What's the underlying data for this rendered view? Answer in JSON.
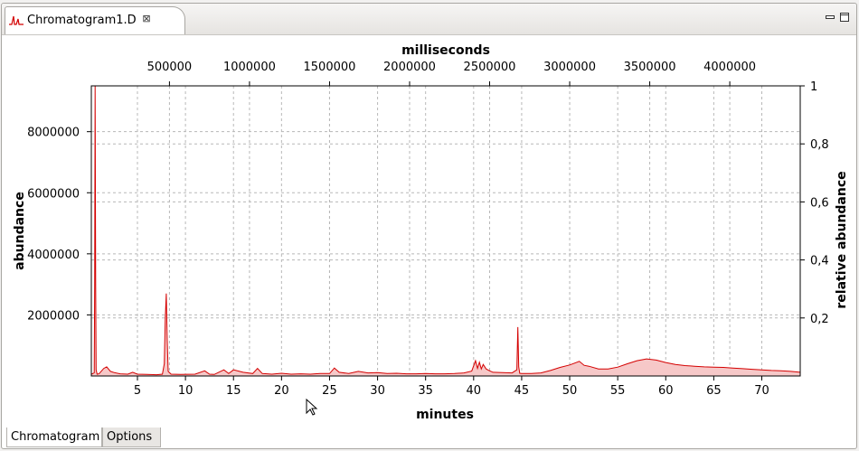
{
  "window": {
    "tab_title": "Chromatogram1.D",
    "tab_icon": "chromatogram-icon",
    "close_icon": "close-icon"
  },
  "bottom_tabs": [
    {
      "label": "Chromatogram"
    },
    {
      "label": "Options"
    }
  ],
  "colors": {
    "trace": "#d40000",
    "fill": "#f6c8c8",
    "grid": "#b8b8b8"
  },
  "chart_data": {
    "type": "area",
    "xlabel": "minutes",
    "x2label": "milliseconds",
    "ylabel": "abundance",
    "y2label": "relative abundance",
    "xlim": [
      0.2,
      74
    ],
    "ylim": [
      0,
      9500000
    ],
    "y2lim": [
      0,
      1
    ],
    "x_ticks": [
      5,
      10,
      15,
      20,
      25,
      30,
      35,
      40,
      45,
      50,
      55,
      60,
      65,
      70
    ],
    "x_tick_labels": [
      "5",
      "10",
      "15",
      "20",
      "25",
      "30",
      "35",
      "40",
      "45",
      "50",
      "55",
      "60",
      "65",
      "70"
    ],
    "x2_ticks": [
      500000,
      1000000,
      1500000,
      2000000,
      2500000,
      3000000,
      3500000,
      4000000
    ],
    "x2_tick_labels": [
      "500000",
      "1000000",
      "1500000",
      "2000000",
      "2500000",
      "3000000",
      "3500000",
      "4000000"
    ],
    "y_ticks": [
      2000000,
      4000000,
      6000000,
      8000000
    ],
    "y_tick_labels": [
      "2000000",
      "4000000",
      "6000000",
      "8000000"
    ],
    "y2_ticks": [
      0.2,
      0.4,
      0.6,
      0.8,
      1
    ],
    "y2_tick_labels": [
      "0,2",
      "0,4",
      "0,6",
      "0,8",
      "1"
    ],
    "grid": true,
    "series": [
      {
        "x": [
          0.2,
          0.5,
          0.55,
          0.6,
          0.65,
          0.7,
          0.8,
          1.0,
          1.5,
          1.8,
          2.2,
          2.6,
          3.2,
          4.0,
          4.5,
          5.0,
          6.0,
          7.0,
          7.6,
          7.8,
          7.9,
          8.0,
          8.1,
          8.2,
          8.5,
          9.5,
          11.0,
          12.0,
          12.5,
          13.0,
          14.0,
          14.5,
          15.0,
          16.0,
          17.0,
          17.5,
          18.0,
          19.0,
          20.0,
          21.0,
          22.0,
          23.0,
          24.0,
          25.0,
          25.5,
          26.0,
          27.0,
          28.0,
          29.0,
          30.0,
          31.0,
          32.0,
          33.0,
          34.0,
          35.0,
          36.0,
          37.0,
          38.0,
          39.0,
          39.8,
          40.2,
          40.4,
          40.6,
          40.8,
          41.0,
          41.3,
          41.6,
          42.0,
          43.0,
          44.0,
          44.5,
          44.6,
          44.7,
          44.8,
          45.0,
          46.0,
          47.0,
          48.0,
          49.0,
          50.0,
          50.5,
          51.0,
          51.5,
          52.0,
          53.0,
          54.0,
          55.0,
          56.0,
          57.0,
          58.0,
          59.0,
          60.0,
          61.0,
          62.0,
          63.0,
          64.0,
          65.0,
          66.0,
          67.0,
          68.0,
          69.0,
          70.0,
          71.0,
          72.0,
          73.0,
          74.0
        ],
        "y": [
          60000,
          100000,
          3000000,
          9500000,
          3000000,
          200000,
          60000,
          70000,
          250000,
          300000,
          150000,
          110000,
          70000,
          60000,
          120000,
          60000,
          50000,
          40000,
          60000,
          400000,
          1900000,
          2700000,
          1200000,
          150000,
          60000,
          50000,
          60000,
          170000,
          60000,
          50000,
          200000,
          80000,
          200000,
          120000,
          80000,
          250000,
          80000,
          60000,
          90000,
          60000,
          70000,
          60000,
          80000,
          80000,
          260000,
          120000,
          80000,
          150000,
          100000,
          110000,
          80000,
          90000,
          70000,
          70000,
          80000,
          70000,
          70000,
          80000,
          100000,
          160000,
          500000,
          250000,
          450000,
          230000,
          380000,
          230000,
          180000,
          120000,
          110000,
          100000,
          200000,
          1600000,
          300000,
          90000,
          80000,
          80000,
          100000,
          180000,
          280000,
          360000,
          420000,
          480000,
          350000,
          320000,
          230000,
          230000,
          290000,
          400000,
          500000,
          560000,
          520000,
          440000,
          380000,
          340000,
          320000,
          300000,
          290000,
          280000,
          260000,
          240000,
          220000,
          200000,
          180000,
          170000,
          150000,
          120000
        ]
      }
    ]
  }
}
